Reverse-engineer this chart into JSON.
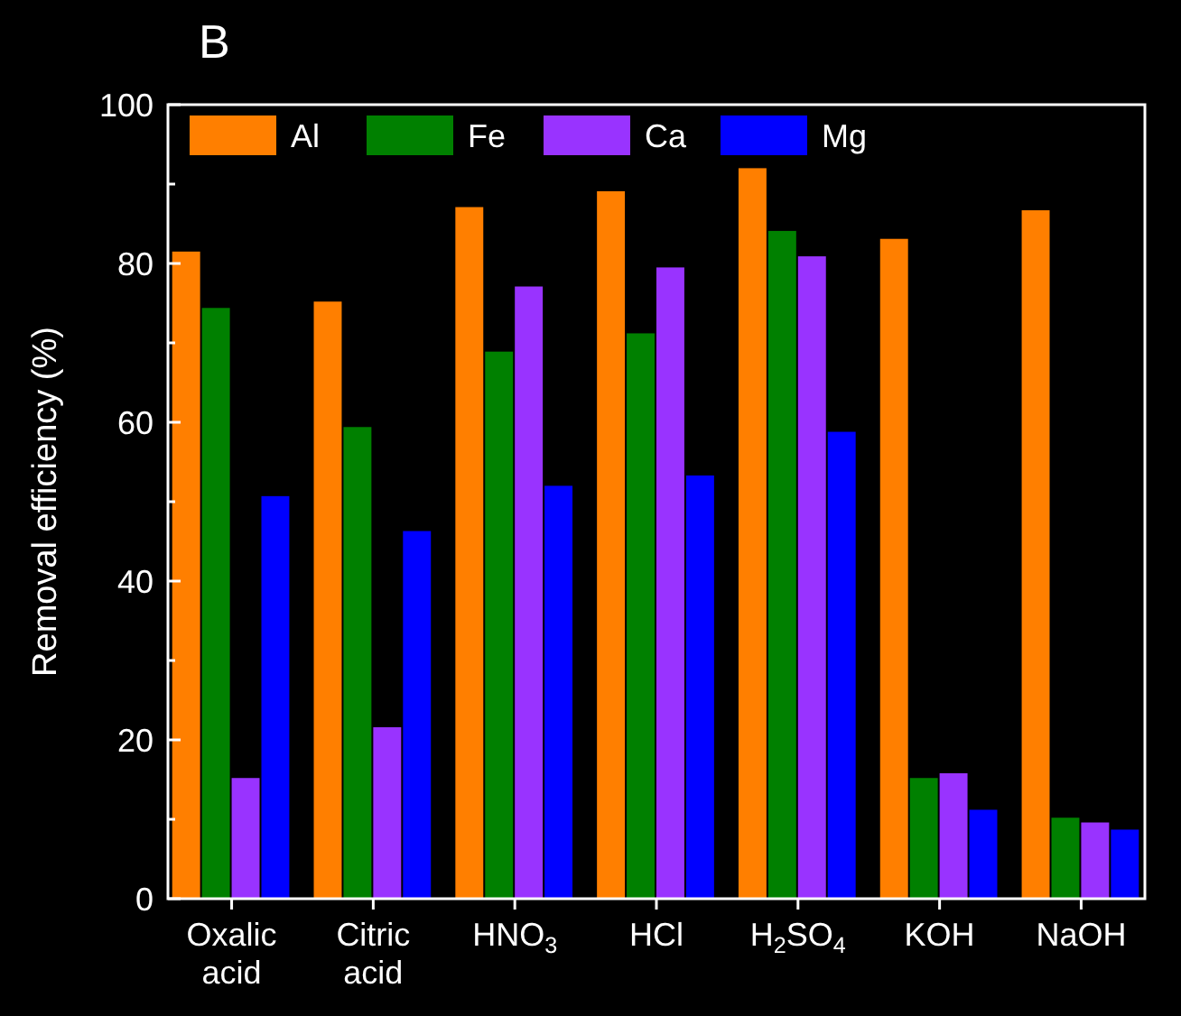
{
  "chart_data": {
    "type": "bar",
    "ylabel": "Removal efficiency (%)",
    "annotations": [
      "B"
    ],
    "categories": [
      "Oxalic acid",
      "Citric acid",
      "HNO$_{3}$",
      "HCl",
      "H$_{2}$SO$_{4}$",
      "KOH",
      "NaOH"
    ],
    "series": [
      {
        "name": "Al",
        "color": "#ff7f00",
        "values": [
          81.5,
          75.2,
          87.1,
          89.1,
          92.0,
          83.1,
          86.7
        ]
      },
      {
        "name": "Fe",
        "color": "#008000",
        "values": [
          74.4,
          59.4,
          68.9,
          71.2,
          84.1,
          15.2,
          10.2
        ]
      },
      {
        "name": "Ca",
        "color": "#9933ff",
        "values": [
          15.2,
          21.6,
          77.1,
          79.5,
          80.9,
          15.8,
          9.6
        ]
      },
      {
        "name": "Mg",
        "color": "#0000ff",
        "values": [
          50.7,
          46.3,
          52.0,
          53.3,
          58.8,
          11.2,
          8.7
        ]
      }
    ],
    "ylim": [
      0,
      100
    ],
    "yticks": [
      0,
      {
        "value": 10,
        "label": null
      },
      20,
      {
        "value": 30,
        "label": null
      },
      40,
      {
        "value": 50,
        "label": null
      },
      60,
      {
        "value": 70,
        "label": null
      },
      80,
      {
        "value": 90,
        "label": null
      },
      100
    ],
    "legend": "top left",
    "grid": false
  }
}
